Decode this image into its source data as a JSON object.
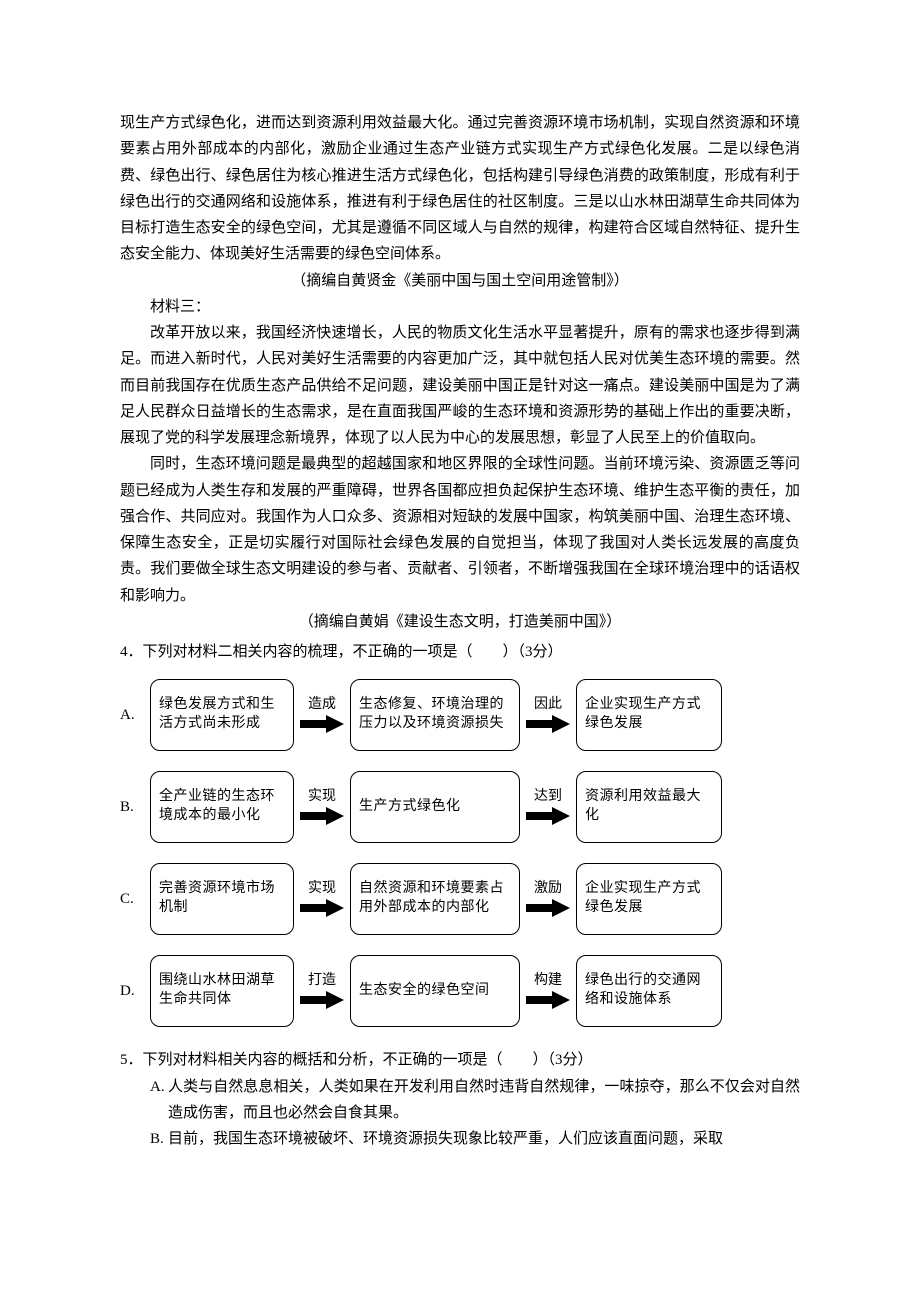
{
  "paragraphs": {
    "p1": "现生产方式绿色化，进而达到资源利用效益最大化。通过完善资源环境市场机制，实现自然资源和环境要素占用外部成本的内部化，激励企业通过生态产业链方式实现生产方式绿色化发展。二是以绿色消费、绿色出行、绿色居住为核心推进生活方式绿色化，包括构建引导绿色消费的政策制度，形成有利于绿色出行的交通网络和设施体系，推进有利于绿色居住的社区制度。三是以山水林田湖草生命共同体为目标打造生态安全的绿色空间，尤其是遵循不同区域人与自然的规律，构建符合区域自然特征、提升生态安全能力、体现美好生活需要的绿色空间体系。",
    "src1": "（摘编自黄贤金《美丽中国与国土空间用途管制》）",
    "mat3": "材料三：",
    "p2": "改革开放以来，我国经济快速增长，人民的物质文化生活水平显著提升，原有的需求也逐步得到满足。而进入新时代，人民对美好生活需要的内容更加广泛，其中就包括人民对优美生态环境的需要。然而目前我国存在优质生态产品供给不足问题，建设美丽中国正是针对这一痛点。建设美丽中国是为了满足人民群众日益增长的生态需求，是在直面我国严峻的生态环境和资源形势的基础上作出的重要决断，展现了党的科学发展理念新境界，体现了以人民为中心的发展思想，彰显了人民至上的价值取向。",
    "p3": "同时，生态环境问题是最典型的超越国家和地区界限的全球性问题。当前环境污染、资源匮乏等问题已经成为人类生存和发展的严重障碍，世界各国都应担负起保护生态环境、维护生态平衡的责任，加强合作、共同应对。我国作为人口众多、资源相对短缺的发展中国家，构筑美丽中国、治理生态环境、保障生态安全，正是切实履行对国际社会绿色发展的自觉担当，体现了我国对人类长远发展的高度负责。我们要做全球生态文明建设的参与者、贡献者、引领者，不断增强我国在全球环境治理中的话语权和影响力。",
    "src2": "（摘编自黄娟《建设生态文明，打造美丽中国》）"
  },
  "q4": {
    "stem": "4．下列对材料二相关内容的梳理，不正确的一项是（　　）（3分）"
  },
  "flow": {
    "node_border": "#000000",
    "node_radius": 10,
    "arrow_fill": "#000000",
    "rows": [
      {
        "label": "A.",
        "n1": "绿色发展方式和生活方式尚未形成",
        "c1": "造成",
        "n2": "生态修复、环境治理的压力以及环境资源损失",
        "c2": "因此",
        "n3": "企业实现生产方式绿色发展",
        "w1": 144,
        "w2": 170,
        "w3": 146,
        "h": 72
      },
      {
        "label": "B.",
        "n1": "全产业链的生态环境成本的最小化",
        "c1": "实现",
        "n2": "生产方式绿色化",
        "c2": "达到",
        "n3": "资源利用效益最大化",
        "w1": 144,
        "w2": 170,
        "w3": 146,
        "h": 72
      },
      {
        "label": "C.",
        "n1": "完善资源环境市场机制",
        "c1": "实现",
        "n2": "自然资源和环境要素占用外部成本的内部化",
        "c2": "激励",
        "n3": "企业实现生产方式绿色发展",
        "w1": 144,
        "w2": 170,
        "w3": 146,
        "h": 72
      },
      {
        "label": "D.",
        "n1": "围绕山水林田湖草生命共同体",
        "c1": "打造",
        "n2": "生态安全的绿色空间",
        "c2": "构建",
        "n3": "绿色出行的交通网络和设施体系",
        "w1": 144,
        "w2": 170,
        "w3": 146,
        "h": 72
      }
    ]
  },
  "q5": {
    "stem": "5．下列对材料相关内容的概括和分析，不正确的一项是（　　）（3分）",
    "optA": "人类与自然息息相关，人类如果在开发利用自然时违背自然规律，一味掠夺，那么不仅会对自然造成伤害，而且也必然会自食其果。",
    "optB": "目前，我国生态环境被破坏、环境资源损失现象比较严重，人们应该直面问题，采取"
  }
}
